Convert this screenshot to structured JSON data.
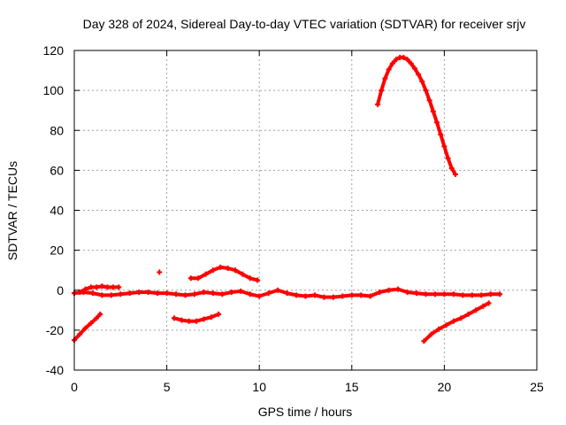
{
  "chart_data": {
    "type": "scatter",
    "title": "Day 328 of 2024, Sidereal Day-to-day VTEC variation (SDTVAR) for receiver srjv",
    "xlabel": "GPS time / hours",
    "ylabel": "SDTVAR / TECUs",
    "xlim": [
      0,
      25
    ],
    "ylim": [
      -40,
      120
    ],
    "xticks": [
      0,
      5,
      10,
      15,
      20,
      25
    ],
    "yticks": [
      -40,
      -20,
      0,
      20,
      40,
      60,
      80,
      100,
      120
    ],
    "grid": true,
    "marker": "+",
    "color": "#ff0000",
    "series": [
      {
        "name": "main-near-zero",
        "x": [
          0,
          0.5,
          1,
          1.5,
          2,
          2.5,
          3,
          3.5,
          4,
          4.5,
          5,
          5.5,
          6,
          6.5,
          7,
          7.5,
          8,
          8.5,
          9,
          9.5,
          10,
          10.5,
          11,
          11.5,
          12,
          12.5,
          13,
          13.5,
          14,
          14.5,
          15,
          15.5,
          16,
          16.5,
          17,
          17.5,
          18,
          18.5,
          19,
          19.5,
          20,
          20.5,
          21,
          21.5,
          22,
          22.5,
          23
        ],
        "y": [
          -1.5,
          -1,
          -1.5,
          -2.5,
          -2.5,
          -2,
          -1.5,
          -1,
          -1,
          -1.5,
          -1.5,
          -2,
          -2.5,
          -2,
          -1,
          -1.5,
          -2,
          -1,
          -0.5,
          -2,
          -3,
          -1.5,
          0,
          -1.5,
          -2.5,
          -3,
          -2.5,
          -3.5,
          -3.5,
          -3,
          -2.5,
          -2.5,
          -3,
          -1,
          0,
          0.5,
          -1,
          -1.5,
          -2,
          -2,
          -2,
          -2,
          -2.5,
          -2.5,
          -2.5,
          -2,
          -2
        ]
      },
      {
        "name": "early-cluster",
        "x": [
          0.3,
          0.6,
          0.9,
          1.2,
          1.5,
          1.8,
          2.1,
          2.4
        ],
        "y": [
          -1,
          0.5,
          1.5,
          1.5,
          2,
          1.5,
          1.5,
          1.5
        ]
      },
      {
        "name": "early-rise",
        "x": [
          0,
          0.3,
          0.6,
          0.9,
          1.2,
          1.4
        ],
        "y": [
          -25,
          -22,
          -19,
          -16.5,
          -14,
          -12
        ]
      },
      {
        "name": "morning-dip",
        "x": [
          5.4,
          5.8,
          6.2,
          6.6,
          7,
          7.4,
          7.8
        ],
        "y": [
          -14,
          -15,
          -15.5,
          -15.5,
          -14.5,
          -13.5,
          -12
        ]
      },
      {
        "name": "morning-bump",
        "x": [
          6.3,
          6.7,
          7.1,
          7.5,
          7.9,
          8.3,
          8.7,
          9.1,
          9.5,
          9.9
        ],
        "y": [
          6,
          6,
          8,
          10,
          11.5,
          11,
          10,
          8,
          6,
          5
        ]
      },
      {
        "name": "outlier",
        "x": [
          4.6
        ],
        "y": [
          9
        ]
      },
      {
        "name": "afternoon-arc",
        "x": [
          16.4,
          16.6,
          16.8,
          17,
          17.2,
          17.4,
          17.6,
          17.8,
          18,
          18.2,
          18.4,
          18.6,
          18.8,
          19,
          19.2,
          19.4,
          19.6,
          19.8,
          20,
          20.2,
          20.4,
          20.6
        ],
        "y": [
          93,
          100,
          106,
          110.5,
          113.5,
          115.5,
          116.5,
          116.5,
          115.5,
          113.5,
          111,
          108,
          104.5,
          100,
          95,
          89.5,
          84,
          78,
          72,
          66,
          61,
          58
        ]
      },
      {
        "name": "late-rise",
        "x": [
          18.9,
          19.3,
          19.7,
          20.1,
          20.5,
          20.9,
          21.3,
          21.7,
          22.1,
          22.4
        ],
        "y": [
          -25.5,
          -22,
          -19.5,
          -17.5,
          -15.5,
          -14,
          -12,
          -10,
          -8,
          -6.5
        ]
      }
    ]
  }
}
